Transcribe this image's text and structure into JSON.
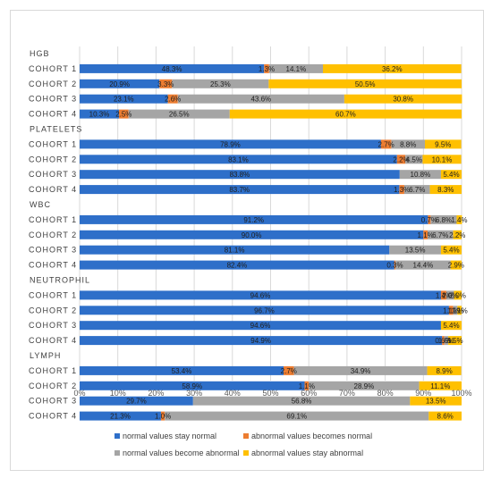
{
  "chart_data": {
    "type": "bar",
    "orientation": "horizontal",
    "stacked": "percent",
    "title": "",
    "xlabel": "",
    "ylabel": "",
    "xlim": [
      0,
      100
    ],
    "x_ticks": [
      "0%",
      "10%",
      "20%",
      "30%",
      "40%",
      "50%",
      "60%",
      "70%",
      "80%",
      "90%",
      "100%"
    ],
    "grid": true,
    "legend_position": "bottom",
    "colors": {
      "normal_stay_normal": "#2e6fc9",
      "abnormal_becomes_normal": "#ed7d31",
      "normal_become_abnormal": "#a5a5a5",
      "abnormal_stay_abnormal": "#ffc000"
    },
    "series": [
      {
        "key": "normal_stay_normal",
        "name": "normal values stay normal"
      },
      {
        "key": "abnormal_becomes_normal",
        "name": "abnormal values becomes normal"
      },
      {
        "key": "normal_become_abnormal",
        "name": "normal values become abnormal"
      },
      {
        "key": "abnormal_stay_abnormal",
        "name": "abnormal values stay abnormal"
      }
    ],
    "groups": [
      {
        "name": "HGB",
        "rows": [
          {
            "label": "COHORT 1",
            "values": [
              48.3,
              1.3,
              14.1,
              36.2
            ],
            "value_labels": [
              "48.3%",
              "1.3%",
              "14.1%",
              "36.2%"
            ]
          },
          {
            "label": "COHORT 2",
            "values": [
              20.9,
              3.3,
              25.3,
              50.5
            ],
            "value_labels": [
              "20.9%",
              "3.3%",
              "25.3%",
              "50.5%"
            ]
          },
          {
            "label": "COHORT 3",
            "values": [
              23.1,
              2.6,
              43.6,
              30.8
            ],
            "value_labels": [
              "23.1%",
              "2.6%",
              "43.6%",
              "30.8%"
            ]
          },
          {
            "label": "COHORT 4",
            "values": [
              10.3,
              2.5,
              26.5,
              60.7
            ],
            "value_labels": [
              "10.3%",
              "2.5%",
              "26.5%",
              "60.7%"
            ]
          }
        ]
      },
      {
        "name": "PLATELETS",
        "rows": [
          {
            "label": "COHORT 1",
            "values": [
              78.9,
              2.7,
              8.8,
              9.5
            ],
            "value_labels": [
              "78.9%",
              "2.7%",
              "8.8%",
              "9.5%"
            ]
          },
          {
            "label": "COHORT 2",
            "values": [
              83.1,
              2.2,
              4.5,
              10.1
            ],
            "value_labels": [
              "83.1%",
              "2.2%",
              "4.5%",
              "10.1%"
            ]
          },
          {
            "label": "COHORT 3",
            "values": [
              83.8,
              0,
              10.8,
              5.4
            ],
            "value_labels": [
              "83.8%",
              "",
              "10.8%",
              "5.4%"
            ]
          },
          {
            "label": "COHORT 4",
            "values": [
              83.7,
              1.3,
              6.7,
              8.3
            ],
            "value_labels": [
              "83.7%",
              "1.3%",
              "6.7%",
              "8.3%"
            ]
          }
        ]
      },
      {
        "name": "WBC",
        "rows": [
          {
            "label": "COHORT 1",
            "values": [
              91.2,
              0.7,
              6.8,
              1.4
            ],
            "value_labels": [
              "91.2%",
              "0.7%",
              "6.8%",
              "1.4%"
            ]
          },
          {
            "label": "COHORT 2",
            "values": [
              90.0,
              1.1,
              6.7,
              2.2
            ],
            "value_labels": [
              "90.0%",
              "1.1%",
              "6.7%",
              "2.2%"
            ]
          },
          {
            "label": "COHORT 3",
            "values": [
              81.1,
              0,
              13.5,
              5.4
            ],
            "value_labels": [
              "81.1%",
              "",
              "13.5%",
              "5.4%"
            ]
          },
          {
            "label": "COHORT 4",
            "values": [
              82.4,
              0.3,
              14.4,
              2.9
            ],
            "value_labels": [
              "82.4%",
              "0.3%",
              "14.4%",
              "2.9%"
            ]
          }
        ]
      },
      {
        "name": "NEUTROPHIL",
        "rows": [
          {
            "label": "COHORT 1",
            "values": [
              94.6,
              1.4,
              2.0,
              2.0
            ],
            "value_labels": [
              "94.6%",
              "1.4%",
              "2.0%",
              "2.0%"
            ]
          },
          {
            "label": "COHORT 2",
            "values": [
              96.7,
              1.1,
              1.1,
              1.1
            ],
            "value_labels": [
              "96.7%",
              "1.1%",
              "1.1%",
              "1.1%"
            ]
          },
          {
            "label": "COHORT 3",
            "values": [
              94.6,
              0,
              0,
              5.4
            ],
            "value_labels": [
              "94.6%",
              "",
              "",
              "5.4%"
            ]
          },
          {
            "label": "COHORT 4",
            "values": [
              94.9,
              0.6,
              1.0,
              3.5
            ],
            "value_labels": [
              "94.9%",
              "0.6%",
              "1.0%",
              "3.5%"
            ]
          }
        ]
      },
      {
        "name": "LYMPH",
        "rows": [
          {
            "label": "COHORT 1",
            "values": [
              53.4,
              2.7,
              34.9,
              8.9
            ],
            "value_labels": [
              "53.4%",
              "2.7%",
              "34.9%",
              "8.9%"
            ]
          },
          {
            "label": "COHORT 2",
            "values": [
              58.9,
              1.1,
              28.9,
              11.1
            ],
            "value_labels": [
              "58.9%",
              "1.1%",
              "28.9%",
              "11.1%"
            ]
          },
          {
            "label": "COHORT 3",
            "values": [
              29.7,
              0,
              56.8,
              13.5
            ],
            "value_labels": [
              "29.7%",
              "",
              "56.8%",
              "13.5%"
            ]
          },
          {
            "label": "COHORT 4",
            "values": [
              21.3,
              1.0,
              69.1,
              8.6
            ],
            "value_labels": [
              "21.3%",
              "1.0%",
              "69.1%",
              "8.6%"
            ]
          }
        ]
      }
    ]
  }
}
